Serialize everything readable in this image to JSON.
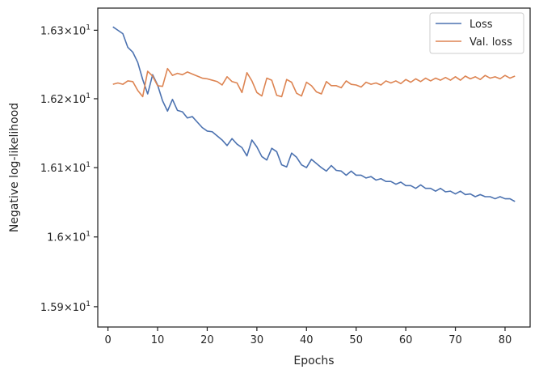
{
  "chart_data": {
    "type": "line",
    "title": "",
    "xlabel": "Epochs",
    "ylabel": "Negative log-likelihood",
    "xlim": [
      -2.05,
      85.05
    ],
    "ylim": [
      15.871,
      16.3325
    ],
    "x_ticks": [
      0,
      10,
      20,
      30,
      40,
      50,
      60,
      70,
      80
    ],
    "y_ticks": [
      {
        "value": 15.9,
        "mantissa": "1.59",
        "times": "×",
        "base": "10",
        "exp": "1"
      },
      {
        "value": 16.0,
        "mantissa": "1.6",
        "times": "×",
        "base": "10",
        "exp": "1"
      },
      {
        "value": 16.1,
        "mantissa": "1.61",
        "times": "×",
        "base": "10",
        "exp": "1"
      },
      {
        "value": 16.2,
        "mantissa": "1.62",
        "times": "×",
        "base": "10",
        "exp": "1"
      },
      {
        "value": 16.3,
        "mantissa": "1.63",
        "times": "×",
        "base": "10",
        "exp": "1"
      }
    ],
    "y_scale": "log",
    "grid": false,
    "legend_position": "top-right",
    "x": [
      1,
      2,
      3,
      4,
      5,
      6,
      7,
      8,
      9,
      10,
      11,
      12,
      13,
      14,
      15,
      16,
      17,
      18,
      19,
      20,
      21,
      22,
      23,
      24,
      25,
      26,
      27,
      28,
      29,
      30,
      31,
      32,
      33,
      34,
      35,
      36,
      37,
      38,
      39,
      40,
      41,
      42,
      43,
      44,
      45,
      46,
      47,
      48,
      49,
      50,
      51,
      52,
      53,
      54,
      55,
      56,
      57,
      58,
      59,
      60,
      61,
      62,
      63,
      64,
      65,
      66,
      67,
      68,
      69,
      70,
      71,
      72,
      73,
      74,
      75,
      76,
      77,
      78,
      79,
      80,
      81,
      82
    ],
    "series": [
      {
        "name": "Loss",
        "color": "#4c72b0",
        "values": [
          16.305,
          16.3,
          16.295,
          16.275,
          16.268,
          16.253,
          16.228,
          16.207,
          16.235,
          16.22,
          16.197,
          16.182,
          16.199,
          16.183,
          16.181,
          16.172,
          16.174,
          16.166,
          16.158,
          16.153,
          16.152,
          16.146,
          16.14,
          16.132,
          16.142,
          16.134,
          16.129,
          16.117,
          16.14,
          16.13,
          16.116,
          16.111,
          16.128,
          16.123,
          16.104,
          16.101,
          16.121,
          16.115,
          16.104,
          16.1,
          16.112,
          16.106,
          16.1,
          16.095,
          16.103,
          16.096,
          16.095,
          16.089,
          16.095,
          16.089,
          16.089,
          16.085,
          16.087,
          16.082,
          16.084,
          16.08,
          16.08,
          16.076,
          16.079,
          16.074,
          16.074,
          16.07,
          16.075,
          16.07,
          16.07,
          16.066,
          16.07,
          16.065,
          16.066,
          16.062,
          16.066,
          16.061,
          16.062,
          16.058,
          16.061,
          16.058,
          16.058,
          16.055,
          16.058,
          16.055,
          16.055,
          16.051
        ]
      },
      {
        "name": "Val. loss",
        "color": "#dd8452",
        "values": [
          16.221,
          16.223,
          16.221,
          16.226,
          16.225,
          16.212,
          16.203,
          16.24,
          16.233,
          16.219,
          16.218,
          16.244,
          16.234,
          16.237,
          16.235,
          16.239,
          16.236,
          16.233,
          16.23,
          16.229,
          16.227,
          16.225,
          16.22,
          16.232,
          16.225,
          16.223,
          16.209,
          16.238,
          16.226,
          16.209,
          16.204,
          16.23,
          16.227,
          16.205,
          16.203,
          16.228,
          16.224,
          16.208,
          16.204,
          16.224,
          16.219,
          16.21,
          16.207,
          16.225,
          16.219,
          16.219,
          16.216,
          16.226,
          16.221,
          16.22,
          16.217,
          16.224,
          16.221,
          16.223,
          16.22,
          16.226,
          16.223,
          16.226,
          16.222,
          16.228,
          16.224,
          16.229,
          16.225,
          16.23,
          16.226,
          16.23,
          16.227,
          16.231,
          16.227,
          16.232,
          16.227,
          16.233,
          16.229,
          16.232,
          16.228,
          16.234,
          16.23,
          16.232,
          16.229,
          16.234,
          16.23,
          16.233
        ]
      }
    ]
  }
}
